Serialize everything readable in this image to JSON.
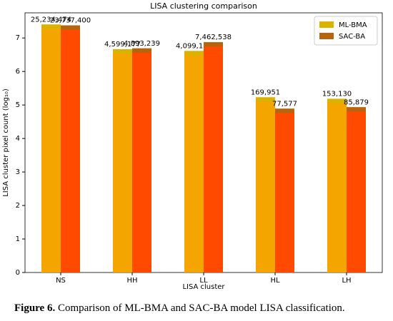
{
  "chart_data": {
    "type": "bar",
    "title": "LISA clustering comparison",
    "x_label": "LISA cluster",
    "y_label": "LISA cluster pixel count (log₁₀)",
    "categories": [
      "NS",
      "HH",
      "LL",
      "HL",
      "LH"
    ],
    "series": [
      {
        "name": "ML-BMA",
        "color": "#d9b300",
        "fill": "#f5a500",
        "values": [
          7.402,
          6.663,
          6.613,
          5.23,
          5.185
        ],
        "value_labels": [
          "25,234,474",
          "4,599,177",
          "4,099,107",
          "169,951",
          "153,130"
        ]
      },
      {
        "name": "SAC-BA",
        "color": "#b5650e",
        "fill": "#ff4a00",
        "values": [
          7.375,
          6.69,
          6.873,
          4.89,
          4.934
        ],
        "value_labels": [
          "23,737,400",
          "4,893,239",
          "7,462,538",
          "77,577",
          "85,879"
        ]
      }
    ],
    "ylim": [
      0,
      7.75
    ],
    "yticks": [
      0,
      1,
      2,
      3,
      4,
      5,
      6,
      7
    ],
    "legend": "upper right"
  },
  "caption": {
    "label": "Figure 6.",
    "text": "Comparison of ML-BMA and SAC-BA model LISA classification."
  }
}
